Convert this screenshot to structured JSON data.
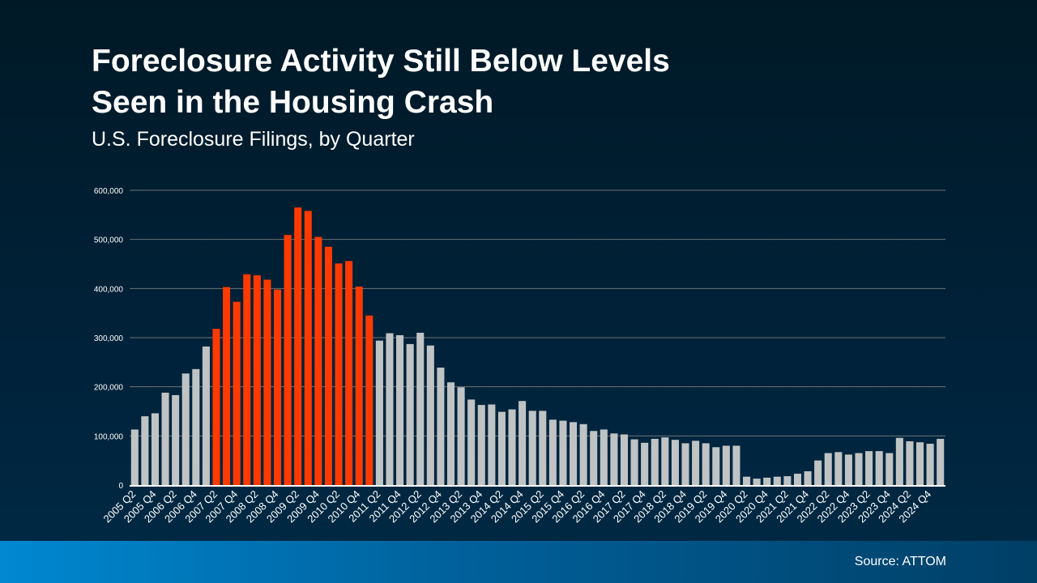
{
  "header": {
    "title_line1": "Foreclosure Activity Still Below Levels",
    "title_line2": "Seen in the Housing Crash",
    "subtitle": "U.S. Foreclosure Filings, by Quarter"
  },
  "footer": {
    "source": "Source: ATTOM"
  },
  "colors": {
    "normal_bar": "#c0c3c4",
    "highlight_bar": "#ff3a00",
    "gridline": "#6b7378",
    "axis": "#ffffff"
  },
  "chart_data": {
    "type": "bar",
    "title": "",
    "xlabel": "",
    "ylabel": "",
    "ylim": [
      0,
      600000
    ],
    "y_ticks": [
      0,
      100000,
      200000,
      300000,
      400000,
      500000,
      600000
    ],
    "y_tick_labels": [
      "0",
      "100,000",
      "200,000",
      "300,000",
      "400,000",
      "500,000",
      "600,000"
    ],
    "grid": true,
    "first_quarter": "2005 Q2",
    "x_tick_labels": [
      "2005 Q2",
      "2005 Q4",
      "2006 Q2",
      "2006 Q4",
      "2007 Q2",
      "2007 Q4",
      "2008 Q2",
      "2008 Q4",
      "2009 Q2",
      "2009 Q4",
      "2010 Q2",
      "2010 Q4",
      "2011 Q2",
      "2011 Q4",
      "2012 Q2",
      "2012 Q4",
      "2013 Q2",
      "2013 Q4",
      "2014 Q2",
      "2014 Q4",
      "2015 Q2",
      "2015 Q4",
      "2016 Q2",
      "2016 Q4",
      "2017 Q2",
      "2017 Q4",
      "2018 Q2",
      "2018 Q4",
      "2019 Q2",
      "2019 Q4",
      "2020 Q2",
      "2020 Q4",
      "2021 Q2",
      "2021 Q4",
      "2022 Q2",
      "2022 Q4",
      "2023 Q2",
      "2023 Q4",
      "2024 Q2",
      "2024 Q4"
    ],
    "values": [
      113000,
      140000,
      146000,
      188000,
      183000,
      227000,
      236000,
      282000,
      318000,
      403000,
      373000,
      429000,
      427000,
      418000,
      398000,
      509000,
      565000,
      558000,
      505000,
      485000,
      451000,
      456000,
      404000,
      345000,
      294000,
      309000,
      305000,
      287000,
      310000,
      284000,
      239000,
      209000,
      199000,
      174000,
      163000,
      164000,
      149000,
      154000,
      171000,
      151000,
      151000,
      133000,
      131000,
      128000,
      124000,
      110000,
      113000,
      105000,
      103000,
      93000,
      86000,
      94000,
      97000,
      92000,
      85000,
      90000,
      85000,
      77000,
      80000,
      80000,
      17000,
      13000,
      15000,
      17000,
      18000,
      23000,
      28000,
      50000,
      65000,
      67000,
      62000,
      65000,
      69000,
      69000,
      65000,
      96000,
      89000,
      87000,
      84000,
      94000
    ],
    "highlighted_range": [
      "2007 Q2",
      "2011 Q1"
    ]
  }
}
